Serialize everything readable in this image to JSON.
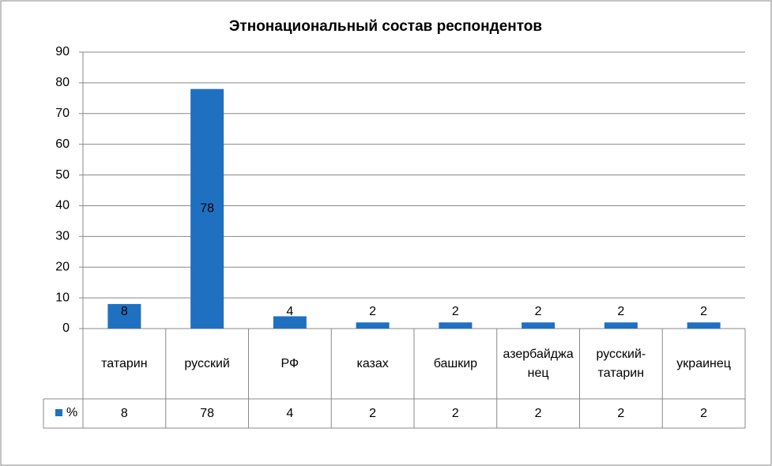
{
  "chart_data": {
    "type": "bar",
    "title": "Этнонациональный состав респондентов",
    "categories": [
      "татарин",
      "русский",
      "РФ",
      "казах",
      "башкир",
      "азербайджанец",
      "русский-татарин",
      "украинец"
    ],
    "series": [
      {
        "name": "%",
        "color": "#1f70c1",
        "values": [
          8,
          78,
          4,
          2,
          2,
          2,
          2,
          2
        ]
      }
    ],
    "ylim": [
      0,
      90
    ],
    "yticks": [
      0,
      10,
      20,
      30,
      40,
      50,
      60,
      70,
      80,
      90
    ],
    "grid": true,
    "data_table": true
  }
}
